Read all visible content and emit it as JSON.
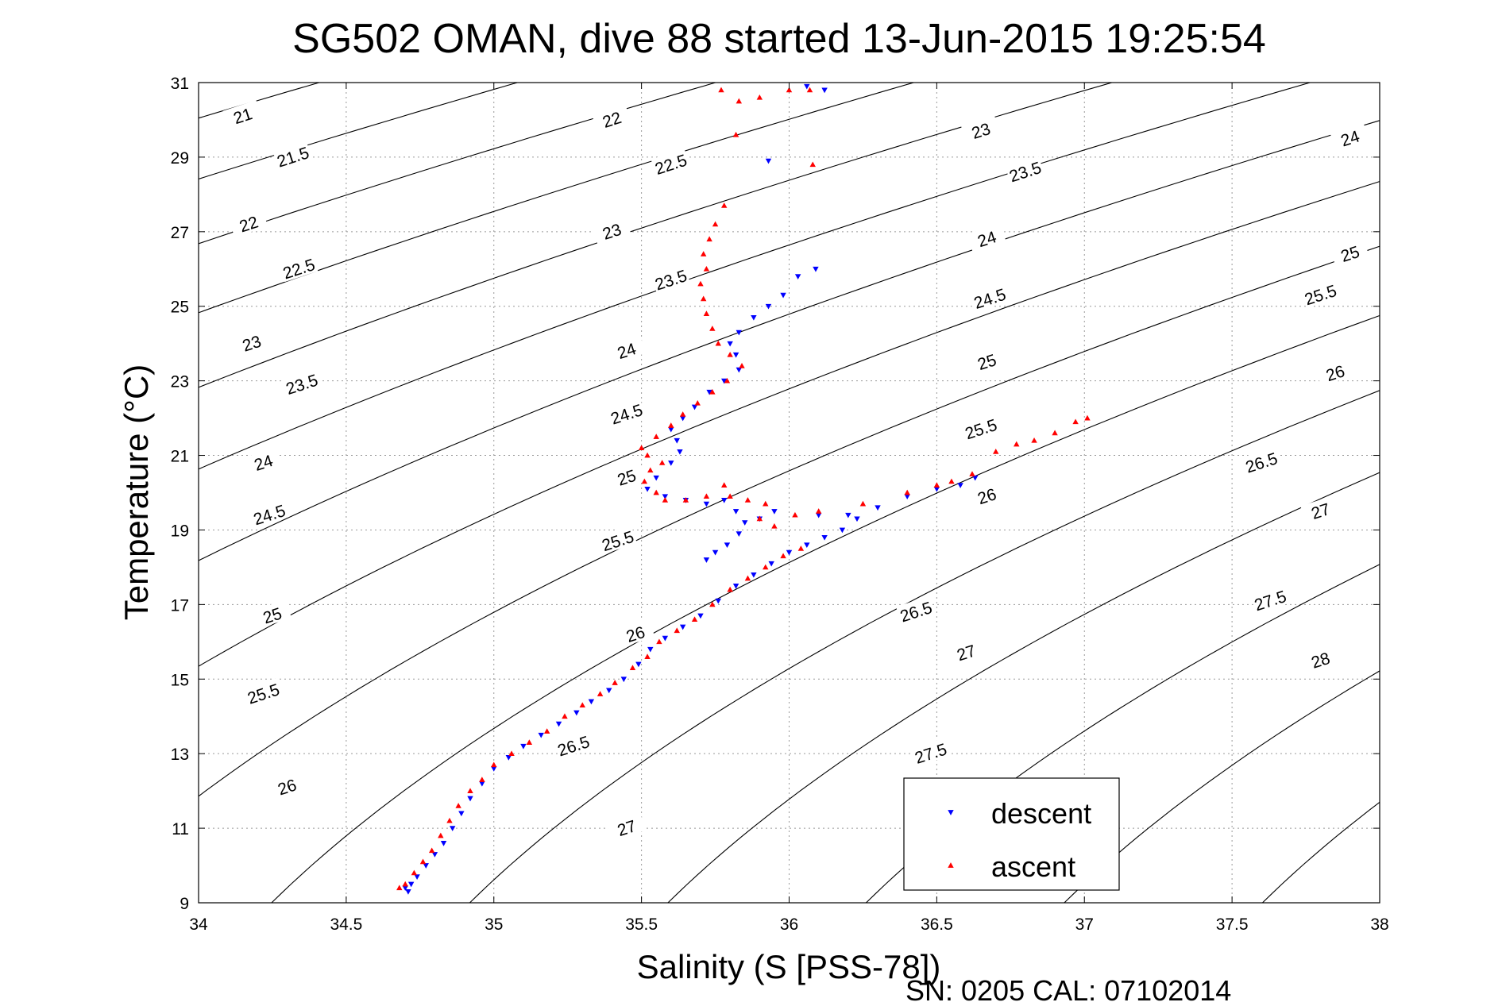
{
  "chart_data": {
    "type": "scatter",
    "title": "SG502 OMAN, dive 88 started 13-Jun-2015 19:25:54",
    "xlabel": "Salinity (S [PSS-78])",
    "ylabel": "Temperature (°C)",
    "xlim": [
      34,
      38
    ],
    "ylim": [
      9,
      31
    ],
    "x_ticks": [
      34,
      34.5,
      35,
      35.5,
      36,
      36.5,
      37,
      37.5,
      38
    ],
    "x_tick_labels": [
      "34",
      "34.5",
      "35",
      "35.5",
      "36",
      "36.5",
      "37",
      "37.5",
      "38"
    ],
    "y_ticks": [
      9,
      11,
      13,
      15,
      17,
      19,
      21,
      23,
      25,
      27,
      29,
      31
    ],
    "y_tick_labels": [
      "9",
      "11",
      "13",
      "15",
      "17",
      "19",
      "21",
      "23",
      "25",
      "27",
      "29",
      "31"
    ],
    "grid": true,
    "legend_position": "bottom-right",
    "footer": "SN: 0205  CAL: 07102014",
    "contours": {
      "levels": [
        21,
        21.5,
        22,
        22.5,
        23,
        23.5,
        24,
        24.5,
        25,
        25.5,
        26,
        26.5,
        27,
        27.5,
        28
      ],
      "labels": [
        {
          "text": "21",
          "x": 34.15,
          "y": 30.1
        },
        {
          "text": "21.5",
          "x": 34.32,
          "y": 29.0
        },
        {
          "text": "22",
          "x": 35.4,
          "y": 30.0
        },
        {
          "text": "22.5",
          "x": 35.6,
          "y": 28.8
        },
        {
          "text": "23",
          "x": 36.65,
          "y": 29.7
        },
        {
          "text": "23.5",
          "x": 36.8,
          "y": 28.6
        },
        {
          "text": "24",
          "x": 37.9,
          "y": 29.5
        },
        {
          "text": "22",
          "x": 34.17,
          "y": 27.2
        },
        {
          "text": "22.5",
          "x": 34.34,
          "y": 26.0
        },
        {
          "text": "23",
          "x": 35.4,
          "y": 27.0
        },
        {
          "text": "23.5",
          "x": 35.6,
          "y": 25.7
        },
        {
          "text": "24",
          "x": 36.67,
          "y": 26.8
        },
        {
          "text": "24.5",
          "x": 36.68,
          "y": 25.2
        },
        {
          "text": "25",
          "x": 37.9,
          "y": 26.4
        },
        {
          "text": "25.5",
          "x": 37.8,
          "y": 25.3
        },
        {
          "text": "23",
          "x": 34.18,
          "y": 24.0
        },
        {
          "text": "23.5",
          "x": 34.35,
          "y": 22.9
        },
        {
          "text": "24",
          "x": 35.45,
          "y": 23.8
        },
        {
          "text": "24.5",
          "x": 35.45,
          "y": 22.1
        },
        {
          "text": "25",
          "x": 36.67,
          "y": 23.5
        },
        {
          "text": "25.5",
          "x": 36.65,
          "y": 21.7
        },
        {
          "text": "26",
          "x": 37.85,
          "y": 23.2
        },
        {
          "text": "24",
          "x": 34.22,
          "y": 20.8
        },
        {
          "text": "24.5",
          "x": 34.24,
          "y": 19.4
        },
        {
          "text": "25",
          "x": 35.45,
          "y": 20.4
        },
        {
          "text": "25.5",
          "x": 35.42,
          "y": 18.7
        },
        {
          "text": "26",
          "x": 36.67,
          "y": 19.9
        },
        {
          "text": "26.5",
          "x": 37.6,
          "y": 20.8
        },
        {
          "text": "27",
          "x": 37.8,
          "y": 19.5
        },
        {
          "text": "25",
          "x": 34.25,
          "y": 16.7
        },
        {
          "text": "26",
          "x": 35.48,
          "y": 16.2
        },
        {
          "text": "26.5",
          "x": 36.43,
          "y": 16.8
        },
        {
          "text": "27.5",
          "x": 37.63,
          "y": 17.1
        },
        {
          "text": "25.5",
          "x": 34.22,
          "y": 14.6
        },
        {
          "text": "27",
          "x": 36.6,
          "y": 15.7
        },
        {
          "text": "28",
          "x": 37.8,
          "y": 15.5
        },
        {
          "text": "26",
          "x": 34.3,
          "y": 12.1
        },
        {
          "text": "26.5",
          "x": 35.27,
          "y": 13.2
        },
        {
          "text": "27.5",
          "x": 36.48,
          "y": 13.0
        },
        {
          "text": "27",
          "x": 35.45,
          "y": 11.0
        }
      ]
    },
    "series": [
      {
        "name": "descent",
        "color": "#0000ff",
        "marker": "triangle-down",
        "points": [
          [
            34.71,
            9.3
          ],
          [
            34.7,
            9.4
          ],
          [
            34.72,
            9.5
          ],
          [
            34.74,
            9.7
          ],
          [
            34.77,
            10.0
          ],
          [
            34.8,
            10.3
          ],
          [
            34.83,
            10.6
          ],
          [
            34.86,
            11.0
          ],
          [
            34.89,
            11.4
          ],
          [
            34.92,
            11.8
          ],
          [
            34.96,
            12.2
          ],
          [
            35.0,
            12.6
          ],
          [
            35.05,
            12.9
          ],
          [
            35.1,
            13.2
          ],
          [
            35.16,
            13.5
          ],
          [
            35.22,
            13.8
          ],
          [
            35.28,
            14.1
          ],
          [
            35.33,
            14.4
          ],
          [
            35.39,
            14.7
          ],
          [
            35.44,
            15.0
          ],
          [
            35.49,
            15.4
          ],
          [
            35.53,
            15.8
          ],
          [
            35.58,
            16.1
          ],
          [
            35.64,
            16.4
          ],
          [
            35.7,
            16.7
          ],
          [
            35.76,
            17.1
          ],
          [
            35.82,
            17.5
          ],
          [
            35.88,
            17.8
          ],
          [
            35.94,
            18.1
          ],
          [
            36.0,
            18.4
          ],
          [
            36.06,
            18.6
          ],
          [
            36.12,
            18.8
          ],
          [
            36.18,
            19.0
          ],
          [
            36.23,
            19.3
          ],
          [
            36.3,
            19.6
          ],
          [
            36.4,
            19.9
          ],
          [
            36.5,
            20.1
          ],
          [
            36.58,
            20.2
          ],
          [
            36.63,
            20.4
          ],
          [
            36.2,
            19.4
          ],
          [
            36.1,
            19.4
          ],
          [
            35.95,
            19.5
          ],
          [
            35.9,
            19.3
          ],
          [
            35.85,
            19.2
          ],
          [
            35.83,
            18.9
          ],
          [
            35.79,
            18.6
          ],
          [
            35.75,
            18.4
          ],
          [
            35.72,
            18.2
          ],
          [
            35.82,
            19.5
          ],
          [
            35.78,
            19.8
          ],
          [
            35.72,
            19.7
          ],
          [
            35.65,
            19.8
          ],
          [
            35.58,
            19.9
          ],
          [
            35.52,
            20.1
          ],
          [
            35.55,
            20.4
          ],
          [
            35.6,
            20.8
          ],
          [
            35.63,
            21.1
          ],
          [
            35.62,
            21.4
          ],
          [
            35.6,
            21.7
          ],
          [
            35.64,
            22.0
          ],
          [
            35.68,
            22.3
          ],
          [
            35.73,
            22.7
          ],
          [
            35.78,
            23.0
          ],
          [
            35.83,
            23.3
          ],
          [
            35.82,
            23.7
          ],
          [
            35.8,
            24.0
          ],
          [
            35.83,
            24.3
          ],
          [
            35.88,
            24.7
          ],
          [
            35.93,
            25.0
          ],
          [
            35.98,
            25.3
          ],
          [
            36.03,
            25.8
          ],
          [
            36.09,
            26.0
          ],
          [
            36.12,
            30.8
          ],
          [
            36.06,
            30.9
          ],
          [
            35.93,
            28.9
          ]
        ]
      },
      {
        "name": "ascent",
        "color": "#ff0000",
        "marker": "triangle-up",
        "points": [
          [
            34.68,
            9.4
          ],
          [
            34.7,
            9.5
          ],
          [
            34.73,
            9.8
          ],
          [
            34.76,
            10.1
          ],
          [
            34.79,
            10.4
          ],
          [
            34.82,
            10.8
          ],
          [
            34.85,
            11.2
          ],
          [
            34.88,
            11.6
          ],
          [
            34.92,
            12.0
          ],
          [
            34.96,
            12.3
          ],
          [
            35.0,
            12.7
          ],
          [
            35.06,
            13.0
          ],
          [
            35.12,
            13.3
          ],
          [
            35.18,
            13.6
          ],
          [
            35.24,
            14.0
          ],
          [
            35.3,
            14.3
          ],
          [
            35.36,
            14.6
          ],
          [
            35.41,
            14.9
          ],
          [
            35.47,
            15.3
          ],
          [
            35.52,
            15.6
          ],
          [
            35.56,
            16.0
          ],
          [
            35.62,
            16.3
          ],
          [
            35.68,
            16.6
          ],
          [
            35.74,
            17.0
          ],
          [
            35.8,
            17.4
          ],
          [
            35.86,
            17.7
          ],
          [
            35.92,
            18.0
          ],
          [
            35.98,
            18.3
          ],
          [
            36.04,
            18.5
          ],
          [
            35.95,
            19.1
          ],
          [
            35.9,
            19.3
          ],
          [
            35.92,
            19.7
          ],
          [
            35.86,
            19.8
          ],
          [
            35.8,
            19.9
          ],
          [
            35.78,
            20.2
          ],
          [
            35.72,
            19.9
          ],
          [
            35.65,
            19.8
          ],
          [
            35.58,
            19.8
          ],
          [
            35.55,
            20.0
          ],
          [
            35.51,
            20.3
          ],
          [
            35.53,
            20.6
          ],
          [
            35.57,
            20.8
          ],
          [
            35.52,
            21.0
          ],
          [
            35.5,
            21.2
          ],
          [
            35.55,
            21.5
          ],
          [
            35.6,
            21.8
          ],
          [
            35.64,
            22.1
          ],
          [
            35.69,
            22.4
          ],
          [
            35.74,
            22.7
          ],
          [
            35.79,
            23.0
          ],
          [
            35.84,
            23.4
          ],
          [
            35.8,
            23.7
          ],
          [
            35.76,
            24.0
          ],
          [
            35.74,
            24.4
          ],
          [
            35.72,
            24.8
          ],
          [
            35.71,
            25.2
          ],
          [
            35.7,
            25.6
          ],
          [
            35.72,
            26.0
          ],
          [
            35.71,
            26.4
          ],
          [
            35.73,
            26.8
          ],
          [
            35.75,
            27.2
          ],
          [
            35.78,
            27.7
          ],
          [
            36.02,
            19.4
          ],
          [
            36.1,
            19.5
          ],
          [
            36.25,
            19.7
          ],
          [
            36.4,
            20.0
          ],
          [
            36.5,
            20.2
          ],
          [
            36.55,
            20.3
          ],
          [
            36.62,
            20.5
          ],
          [
            36.7,
            21.1
          ],
          [
            36.77,
            21.3
          ],
          [
            36.83,
            21.4
          ],
          [
            36.9,
            21.6
          ],
          [
            36.97,
            21.9
          ],
          [
            37.01,
            22.0
          ],
          [
            36.07,
            30.8
          ],
          [
            36.0,
            30.8
          ],
          [
            35.9,
            30.6
          ],
          [
            35.83,
            30.5
          ],
          [
            35.77,
            30.8
          ],
          [
            35.82,
            29.6
          ],
          [
            36.08,
            28.8
          ]
        ]
      }
    ]
  }
}
